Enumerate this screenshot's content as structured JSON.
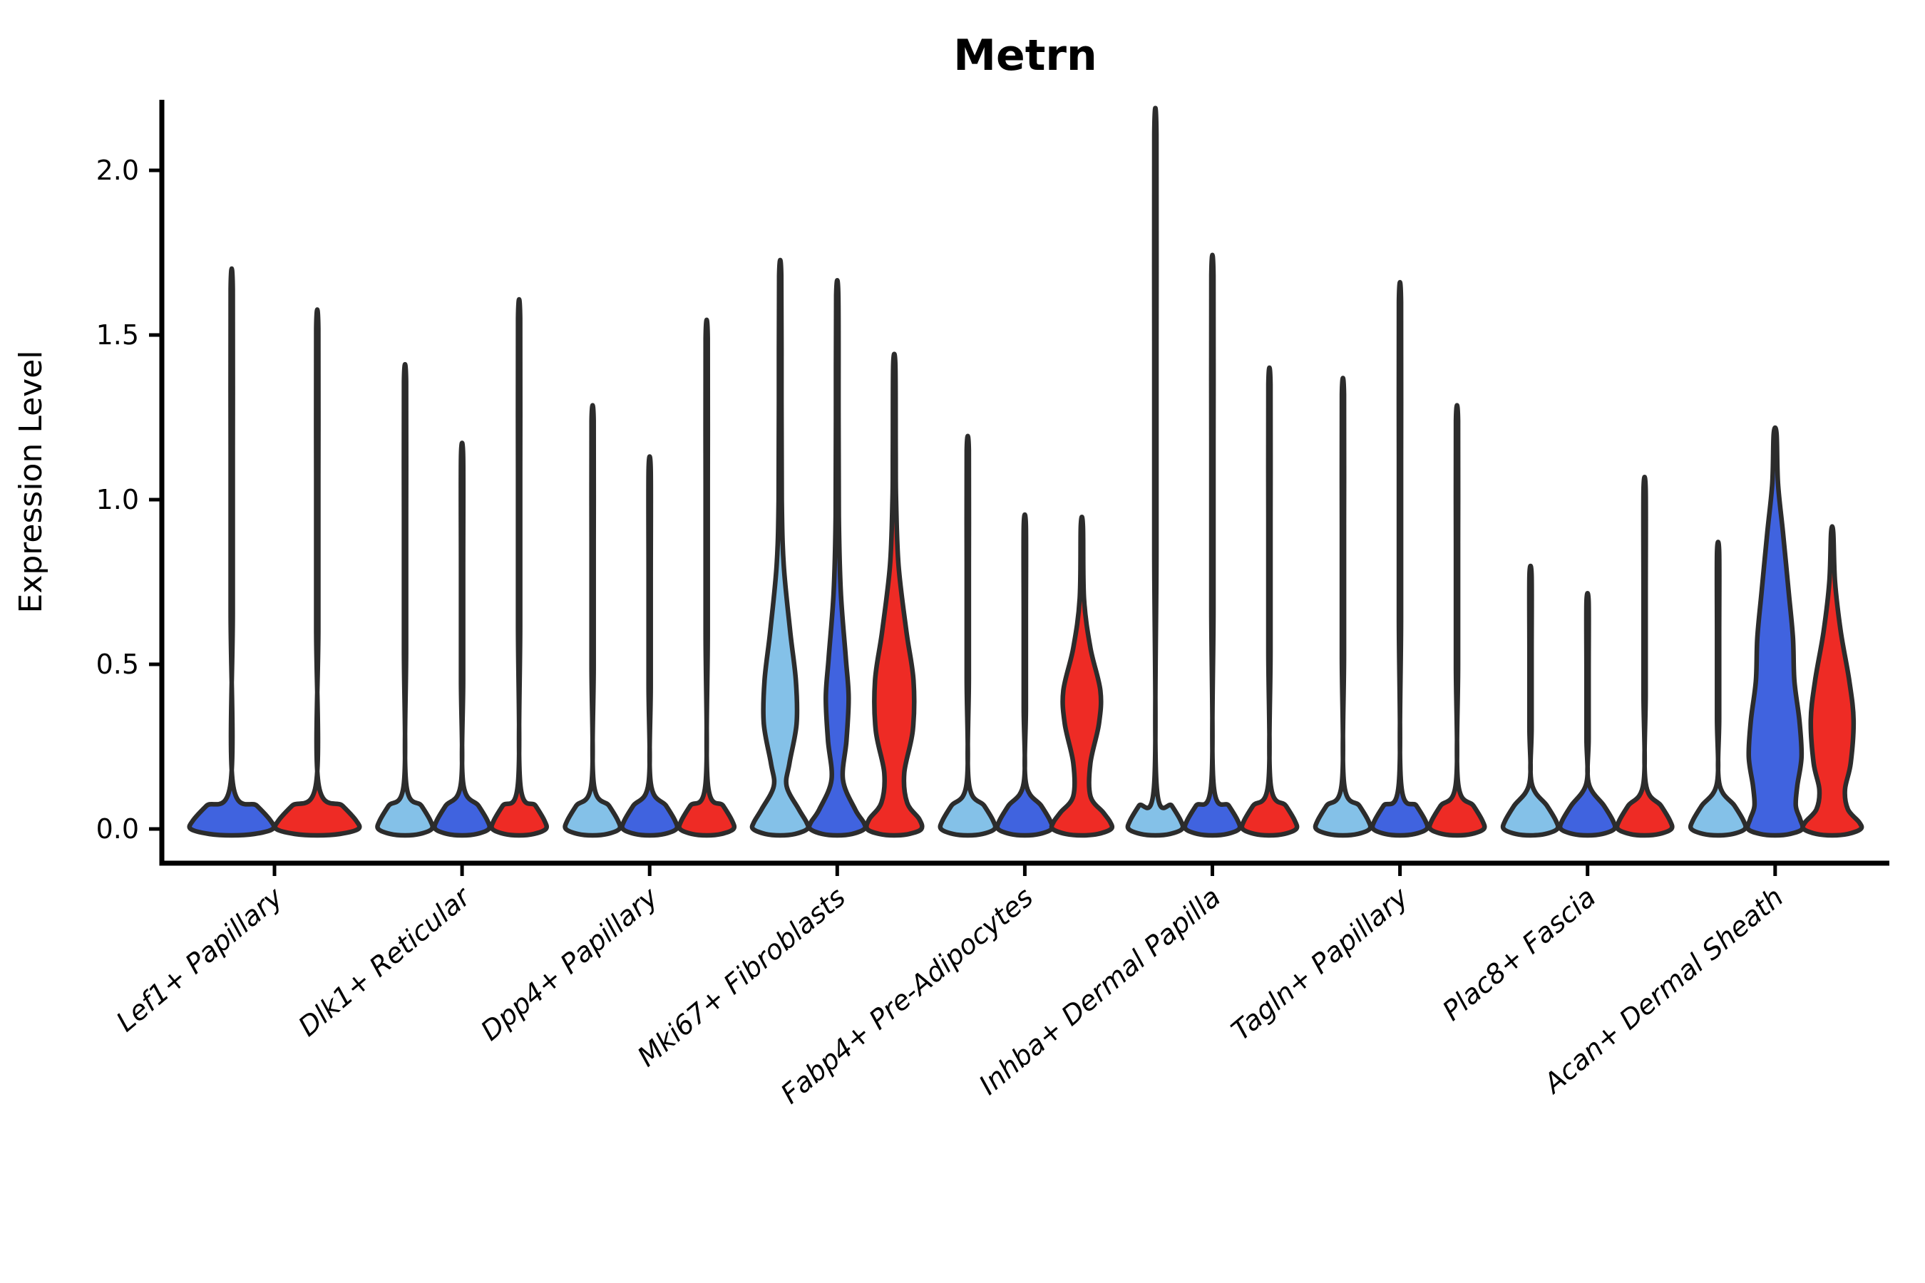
{
  "title": "Metrn",
  "ylabel": "Expression Level",
  "chart_data": {
    "type": "violin",
    "title": "Metrn",
    "xlabel": "",
    "ylabel": "Expression Level",
    "ylim": [
      -0.06,
      2.22
    ],
    "yticks": [
      "0.0",
      "0.5",
      "1.0",
      "1.5",
      "2.0"
    ],
    "ytick_values": [
      0.0,
      0.5,
      1.0,
      1.5,
      2.0
    ],
    "grid": false,
    "legend": "none",
    "series_colors": {
      "lightblue": "#84C1E8",
      "blue": "#4063DF",
      "red": "#EE2B25"
    },
    "outline_color": "#2C2C2C",
    "spine_color": "#000000",
    "categories": [
      "Lef1+ Papillary",
      "Dlk1+ Reticular",
      "Dpp4+ Papillary",
      "Mki67+ Fibroblasts",
      "Fabp4+ Pre-Adipocytes",
      "Inhba+ Dermal Papilla",
      "Tagln+ Papillary",
      "Plac8+ Fascia",
      "Acan+ Dermal Sheath"
    ],
    "groups": [
      {
        "category": "Lef1+ Papillary",
        "violins": [
          {
            "color": "blue",
            "max": 1.64,
            "body": "none"
          },
          {
            "color": "red",
            "max": 1.52,
            "body": "none"
          }
        ]
      },
      {
        "category": "Dlk1+ Reticular",
        "violins": [
          {
            "color": "lightblue",
            "max": 1.36,
            "body": "none"
          },
          {
            "color": "blue",
            "max": 1.13,
            "body": "none"
          },
          {
            "color": "red",
            "max": 1.55,
            "body": "none"
          }
        ]
      },
      {
        "category": "Dpp4+ Papillary",
        "violins": [
          {
            "color": "lightblue",
            "max": 1.24,
            "body": "none"
          },
          {
            "color": "blue",
            "max": 1.09,
            "body": "none"
          },
          {
            "color": "red",
            "max": 1.49,
            "body": "none"
          }
        ]
      },
      {
        "category": "Mki67+ Fibroblasts",
        "violins": [
          {
            "color": "lightblue",
            "max": 1.68,
            "body": "bulge",
            "profile": [
              [
                1.68,
                1.5
              ],
              [
                1.3,
                1.8
              ],
              [
                1.0,
                2.2
              ],
              [
                0.8,
                5
              ],
              [
                0.6,
                14
              ],
              [
                0.45,
                22
              ],
              [
                0.32,
                23
              ],
              [
                0.2,
                13
              ],
              [
                0.13,
                9
              ],
              [
                0.06,
                26
              ],
              [
                0.02,
                37
              ],
              [
                0,
                38
              ]
            ]
          },
          {
            "color": "blue",
            "max": 1.62,
            "body": "bulge",
            "profile": [
              [
                1.62,
                1.5
              ],
              [
                1.25,
                1.8
              ],
              [
                0.95,
                2.2
              ],
              [
                0.72,
                5
              ],
              [
                0.52,
                12
              ],
              [
                0.4,
                16
              ],
              [
                0.27,
                13
              ],
              [
                0.15,
                8
              ],
              [
                0.06,
                25
              ],
              [
                0.02,
                37
              ],
              [
                0,
                38
              ]
            ]
          },
          {
            "color": "red",
            "max": 1.41,
            "body": "bulge",
            "profile": [
              [
                1.41,
                1.5
              ],
              [
                1.15,
                2.0
              ],
              [
                1.0,
                2.5
              ],
              [
                0.8,
                6
              ],
              [
                0.6,
                17
              ],
              [
                0.45,
                27
              ],
              [
                0.3,
                26
              ],
              [
                0.17,
                14
              ],
              [
                0.08,
                18
              ],
              [
                0.03,
                35
              ],
              [
                0,
                38
              ]
            ]
          }
        ]
      },
      {
        "category": "Fabp4+ Pre-Adipocytes",
        "violins": [
          {
            "color": "lightblue",
            "max": 1.15,
            "body": "none"
          },
          {
            "color": "blue",
            "max": 0.92,
            "body": "none"
          },
          {
            "color": "red",
            "max": 0.92,
            "body": "bulge",
            "profile": [
              [
                0.92,
                1.5
              ],
              [
                0.7,
                3
              ],
              [
                0.55,
                12
              ],
              [
                0.42,
                26
              ],
              [
                0.32,
                24
              ],
              [
                0.2,
                12
              ],
              [
                0.1,
                12
              ],
              [
                0.05,
                30
              ],
              [
                0.02,
                40
              ],
              [
                0,
                41
              ]
            ]
          }
        ]
      },
      {
        "category": "Inhba+ Dermal Papilla",
        "violins": [
          {
            "color": "lightblue",
            "max": 2.11,
            "body": "none"
          },
          {
            "color": "blue",
            "max": 1.68,
            "body": "none"
          },
          {
            "color": "red",
            "max": 1.35,
            "body": "none"
          }
        ]
      },
      {
        "category": "Tagln+ Papillary",
        "violins": [
          {
            "color": "lightblue",
            "max": 1.32,
            "body": "none"
          },
          {
            "color": "blue",
            "max": 1.6,
            "body": "none"
          },
          {
            "color": "red",
            "max": 1.24,
            "body": "none"
          }
        ]
      },
      {
        "category": "Plac8+ Fascia",
        "violins": [
          {
            "color": "lightblue",
            "max": 0.77,
            "body": "none"
          },
          {
            "color": "blue",
            "max": 0.69,
            "body": "none"
          },
          {
            "color": "red",
            "max": 1.03,
            "body": "none"
          }
        ]
      },
      {
        "category": "Acan+ Dermal Sheath",
        "violins": [
          {
            "color": "lightblue",
            "max": 0.84,
            "body": "none"
          },
          {
            "color": "blue",
            "max": 1.2,
            "body": "bulge",
            "profile": [
              [
                1.2,
                2
              ],
              [
                1.05,
                4
              ],
              [
                0.9,
                11
              ],
              [
                0.72,
                19
              ],
              [
                0.58,
                25
              ],
              [
                0.45,
                27
              ],
              [
                0.33,
                34
              ],
              [
                0.22,
                37
              ],
              [
                0.13,
                31
              ],
              [
                0.07,
                29
              ],
              [
                0.03,
                35
              ],
              [
                0,
                38
              ]
            ]
          },
          {
            "color": "red",
            "max": 0.9,
            "body": "bulge",
            "profile": [
              [
                0.9,
                1.5
              ],
              [
                0.75,
                4
              ],
              [
                0.6,
                12
              ],
              [
                0.45,
                24
              ],
              [
                0.33,
                30
              ],
              [
                0.2,
                26
              ],
              [
                0.12,
                18
              ],
              [
                0.06,
                22
              ],
              [
                0.02,
                38
              ],
              [
                0,
                40
              ]
            ]
          }
        ]
      }
    ]
  }
}
